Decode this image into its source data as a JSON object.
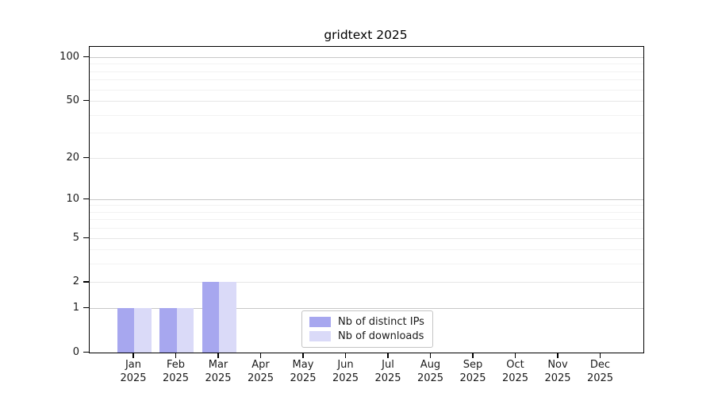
{
  "chart_data": {
    "type": "bar",
    "title": "gridtext 2025",
    "categories": [
      "Jan",
      "Feb",
      "Mar",
      "Apr",
      "May",
      "Jun",
      "Jul",
      "Aug",
      "Sep",
      "Oct",
      "Nov",
      "Dec"
    ],
    "category_year": "2025",
    "series": [
      {
        "name": "Nb of distinct IPs",
        "color": "#a7a7ef",
        "values": [
          1,
          1,
          2,
          0,
          0,
          0,
          0,
          0,
          0,
          0,
          0,
          0
        ]
      },
      {
        "name": "Nb of downloads",
        "color": "#dadaf8",
        "values": [
          1,
          1,
          2,
          0,
          0,
          0,
          0,
          0,
          0,
          0,
          0,
          0
        ]
      }
    ],
    "yscale": "log10(1+x)",
    "y_major_ticks": [
      0,
      1,
      2,
      5,
      10,
      20,
      50,
      100
    ],
    "y_decade_gridlines": [
      1,
      10,
      100
    ],
    "y_minor_gridlines": [
      3,
      4,
      6,
      7,
      8,
      9,
      30,
      40,
      60,
      70,
      80,
      90
    ],
    "grid": "horizontal-only",
    "legend_position": "lower-center",
    "colors": {
      "decade_gridline": "#c8c8c8",
      "major_gridline": "#e6e6e6",
      "minor_gridline": "#f2f2f2",
      "axis": "#000000",
      "text": "#1a1a1a",
      "background": "#ffffff"
    }
  }
}
